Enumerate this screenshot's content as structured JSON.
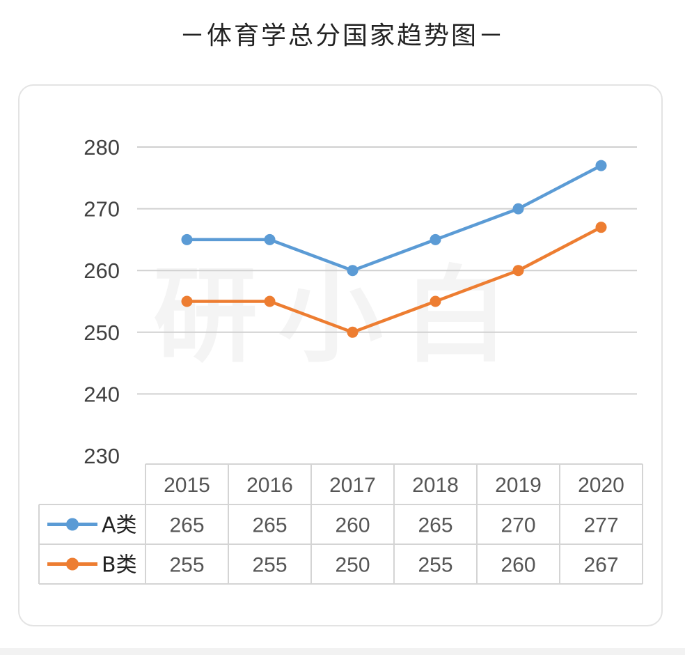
{
  "title": "－体育学总分国家趋势图－",
  "chart_data": {
    "type": "line",
    "title": "－体育学总分国家趋势图－",
    "categories": [
      "2015",
      "2016",
      "2017",
      "2018",
      "2019",
      "2020"
    ],
    "ylim": [
      230,
      280
    ],
    "yticks": [
      230,
      240,
      250,
      260,
      270,
      280
    ],
    "grid": true,
    "legend": "data-table-left",
    "series": [
      {
        "name": "A类",
        "values": [
          265,
          265,
          260,
          265,
          270,
          277
        ],
        "color": "#5b9bd5"
      },
      {
        "name": "B类",
        "values": [
          255,
          255,
          250,
          255,
          260,
          267
        ],
        "color": "#ed7d31"
      }
    ]
  },
  "watermark": "研小白"
}
